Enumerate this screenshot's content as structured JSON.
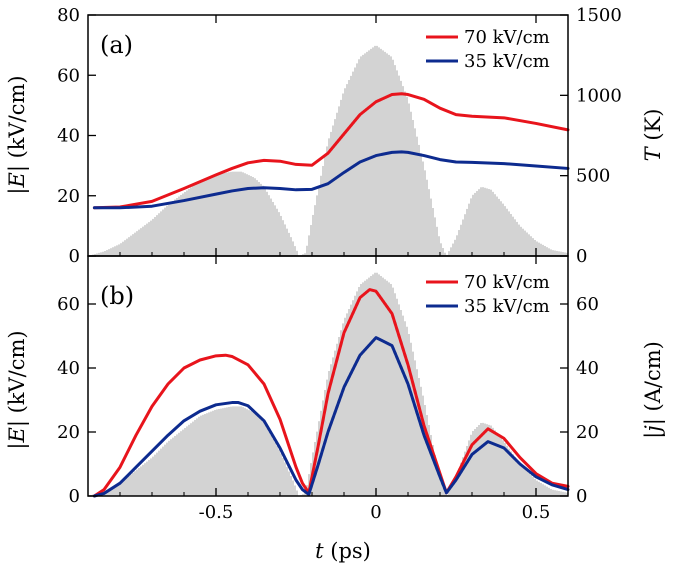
{
  "chart_data": [
    {
      "type": "line",
      "panel_label": "(a)",
      "xlim": [
        -0.9,
        0.6
      ],
      "ylim": [
        0,
        80
      ],
      "y2lim": [
        0,
        1500
      ],
      "xlabel": "",
      "ylabel": "|E| (kV/cm)",
      "y2label": "T (K)",
      "ylabel_parts": [
        "|",
        "E",
        "| (kV/cm)"
      ],
      "y2label_parts": [
        "T",
        " (K)"
      ],
      "xticks": [
        -0.5,
        0,
        0.5
      ],
      "xtick_labels": [
        "",
        "",
        ""
      ],
      "yticks": [
        0,
        20,
        40,
        60,
        80
      ],
      "ytick_labels": [
        "0",
        "20",
        "40",
        "60",
        "80"
      ],
      "y2ticks": [
        0,
        500,
        1000,
        1500
      ],
      "y2tick_labels": [
        "0",
        "500",
        "1000",
        "1500"
      ],
      "legend": {
        "position": "top-right",
        "entries": [
          "70 kV/cm",
          "35 kV/cm"
        ]
      },
      "field_envelope": {
        "name": "|E| field (shaded)",
        "color": "#c8c8c8",
        "x": [
          -0.9,
          -0.85,
          -0.8,
          -0.75,
          -0.7,
          -0.65,
          -0.6,
          -0.55,
          -0.5,
          -0.45,
          -0.42,
          -0.38,
          -0.35,
          -0.3,
          -0.26,
          -0.24,
          -0.22,
          -0.2,
          -0.15,
          -0.1,
          -0.05,
          0,
          0.05,
          0.1,
          0.15,
          0.2,
          0.22,
          0.25,
          0.3,
          0.33,
          0.36,
          0.4,
          0.45,
          0.5,
          0.55,
          0.6
        ],
        "y": [
          0,
          1.5,
          4,
          8,
          12,
          17,
          21,
          25,
          27,
          28,
          28,
          26,
          23,
          14,
          5,
          0,
          1,
          12,
          38,
          55,
          66,
          70,
          66,
          52,
          30,
          5,
          0,
          6,
          20,
          23,
          22,
          17,
          10,
          5,
          2,
          1
        ]
      },
      "series": [
        {
          "name": "70 kV/cm",
          "color": "#e8141c",
          "axis": "right",
          "x": [
            -0.88,
            -0.8,
            -0.7,
            -0.6,
            -0.5,
            -0.45,
            -0.4,
            -0.35,
            -0.3,
            -0.25,
            -0.2,
            -0.15,
            -0.1,
            -0.05,
            0,
            0.05,
            0.08,
            0.1,
            0.15,
            0.2,
            0.25,
            0.3,
            0.4,
            0.5,
            0.6
          ],
          "values": [
            300,
            305,
            340,
            420,
            505,
            545,
            580,
            595,
            590,
            570,
            565,
            640,
            760,
            880,
            960,
            1005,
            1010,
            1005,
            975,
            920,
            880,
            870,
            860,
            825,
            785
          ]
        },
        {
          "name": "35 kV/cm",
          "color": "#0d2b8f",
          "axis": "right",
          "x": [
            -0.88,
            -0.8,
            -0.7,
            -0.6,
            -0.5,
            -0.45,
            -0.4,
            -0.35,
            -0.3,
            -0.25,
            -0.2,
            -0.15,
            -0.1,
            -0.05,
            0,
            0.05,
            0.08,
            0.1,
            0.15,
            0.2,
            0.25,
            0.3,
            0.4,
            0.5,
            0.6
          ],
          "values": [
            300,
            300,
            310,
            345,
            385,
            405,
            420,
            425,
            420,
            412,
            415,
            450,
            520,
            585,
            625,
            645,
            648,
            645,
            625,
            600,
            585,
            583,
            575,
            560,
            545
          ]
        }
      ]
    },
    {
      "type": "line",
      "panel_label": "(b)",
      "xlim": [
        -0.9,
        0.6
      ],
      "ylim": [
        0,
        75
      ],
      "y2lim": [
        0,
        75
      ],
      "xlabel": "t (ps)",
      "ylabel": "|E| (kV/cm)",
      "y2label": "|j| (A/cm)",
      "xlabel_parts": [
        "t",
        " (ps)"
      ],
      "ylabel_parts": [
        "|",
        "E",
        "| (kV/cm)"
      ],
      "y2label_parts": [
        "|",
        "j",
        "| (A/cm)"
      ],
      "xticks": [
        -0.5,
        0,
        0.5
      ],
      "xtick_labels": [
        "-0.5",
        "0",
        "0.5"
      ],
      "yticks": [
        0,
        20,
        40,
        60
      ],
      "ytick_labels": [
        "0",
        "20",
        "40",
        "60"
      ],
      "y2ticks": [
        0,
        20,
        40,
        60
      ],
      "y2tick_labels": [
        "0",
        "20",
        "40",
        "60"
      ],
      "legend": {
        "position": "top-right",
        "entries": [
          "70 kV/cm",
          "35 kV/cm"
        ]
      },
      "field_envelope": {
        "name": "|E| field (shaded)",
        "color": "#c8c8c8",
        "x": [
          -0.9,
          -0.85,
          -0.8,
          -0.75,
          -0.7,
          -0.65,
          -0.6,
          -0.55,
          -0.5,
          -0.45,
          -0.42,
          -0.38,
          -0.35,
          -0.3,
          -0.26,
          -0.24,
          -0.22,
          -0.2,
          -0.15,
          -0.1,
          -0.05,
          0,
          0.05,
          0.1,
          0.15,
          0.2,
          0.22,
          0.25,
          0.3,
          0.33,
          0.36,
          0.4,
          0.45,
          0.5,
          0.55,
          0.6
        ],
        "y": [
          0,
          1.5,
          4,
          8,
          12,
          17,
          21,
          25,
          27,
          28,
          28,
          26,
          23,
          14,
          5,
          0,
          1,
          12,
          38,
          55,
          66,
          70,
          66,
          52,
          30,
          5,
          0,
          6,
          20,
          23,
          22,
          17,
          10,
          5,
          2,
          1
        ]
      },
      "series": [
        {
          "name": "70 kV/cm",
          "color": "#e8141c",
          "axis": "right",
          "x": [
            -0.88,
            -0.85,
            -0.8,
            -0.75,
            -0.7,
            -0.65,
            -0.6,
            -0.55,
            -0.5,
            -0.47,
            -0.45,
            -0.4,
            -0.35,
            -0.3,
            -0.27,
            -0.25,
            -0.23,
            -0.21,
            -0.18,
            -0.15,
            -0.1,
            -0.05,
            -0.02,
            0,
            0.05,
            0.1,
            0.15,
            0.2,
            0.22,
            0.25,
            0.3,
            0.35,
            0.4,
            0.45,
            0.5,
            0.55,
            0.6
          ],
          "values": [
            0,
            2,
            9,
            19,
            28,
            35,
            40,
            42.5,
            43.8,
            44,
            43.6,
            41,
            35,
            24,
            15,
            9,
            4,
            1,
            16,
            32,
            51,
            62,
            64.5,
            64,
            57,
            41,
            22,
            7,
            1,
            6,
            16,
            21,
            18,
            12,
            7,
            4,
            3
          ]
        },
        {
          "name": "35 kV/cm",
          "color": "#0d2b8f",
          "axis": "right",
          "x": [
            -0.88,
            -0.85,
            -0.8,
            -0.75,
            -0.7,
            -0.65,
            -0.6,
            -0.55,
            -0.5,
            -0.45,
            -0.43,
            -0.4,
            -0.35,
            -0.3,
            -0.27,
            -0.25,
            -0.23,
            -0.21,
            -0.18,
            -0.15,
            -0.1,
            -0.05,
            0,
            0.05,
            0.1,
            0.15,
            0.2,
            0.22,
            0.25,
            0.3,
            0.35,
            0.4,
            0.45,
            0.5,
            0.55,
            0.6
          ],
          "values": [
            0,
            0.8,
            4,
            9,
            14,
            19,
            23.5,
            26.5,
            28.5,
            29.2,
            29.2,
            28.2,
            23.5,
            15,
            9,
            5,
            2,
            0.5,
            10,
            20,
            34,
            44,
            49.5,
            47,
            35,
            19,
            6,
            1,
            5,
            13,
            17,
            15,
            10,
            6,
            3.5,
            2
          ]
        }
      ]
    }
  ]
}
